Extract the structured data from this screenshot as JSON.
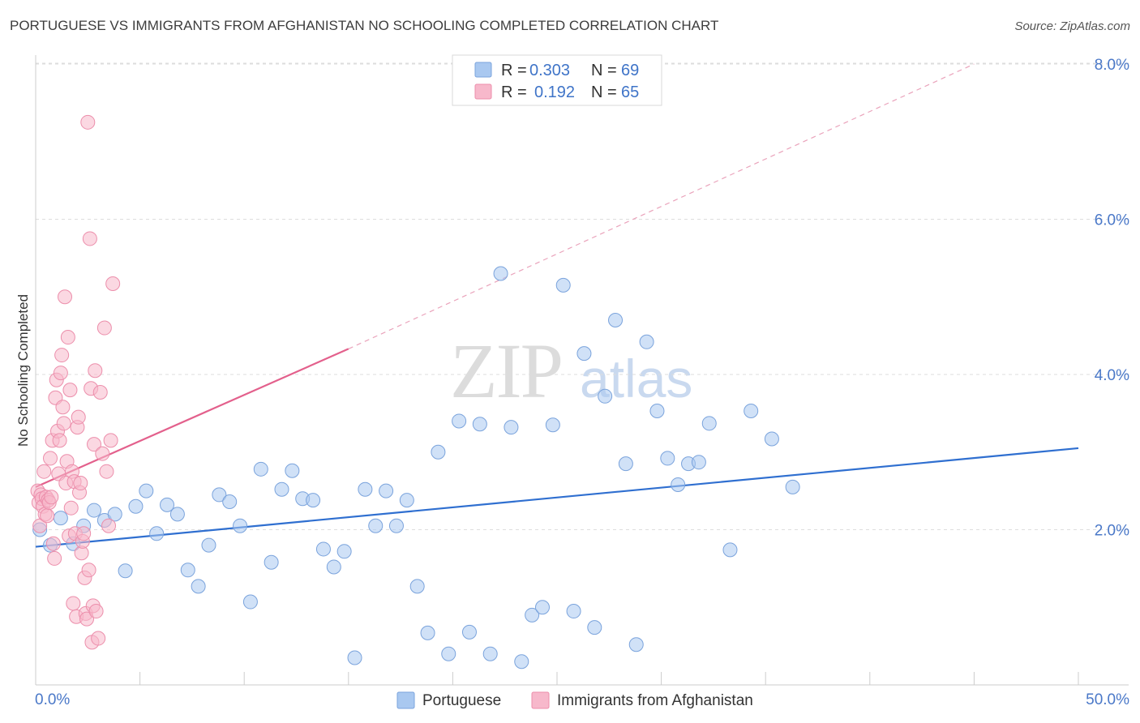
{
  "header": {
    "title": "PORTUGUESE VS IMMIGRANTS FROM AFGHANISTAN NO SCHOOLING COMPLETED CORRELATION CHART",
    "source": "Source: ZipAtlas.com"
  },
  "watermark": {
    "zip": "ZIP",
    "atlas": "atlas"
  },
  "legend": {
    "r_label": "R =",
    "n_label": "N =",
    "rows": [
      {
        "r": "0.303",
        "n": "69",
        "color": "#a9c8f0"
      },
      {
        "r": "0.192",
        "n": "65",
        "color": "#f7b8cb"
      }
    ]
  },
  "chart_data": {
    "type": "scatter",
    "title": "PORTUGUESE VS IMMIGRANTS FROM AFGHANISTAN NO SCHOOLING COMPLETED CORRELATION CHART",
    "xlabel": "",
    "ylabel": "No Schooling Completed",
    "xlim": [
      0,
      50
    ],
    "ylim": [
      0,
      8
    ],
    "y_ticks": [
      {
        "value": 2,
        "label": "2.0%"
      },
      {
        "value": 4,
        "label": "4.0%"
      },
      {
        "value": 6,
        "label": "6.0%"
      },
      {
        "value": 8,
        "label": "8.0%"
      }
    ],
    "x_tick_labels": {
      "min": "0.0%",
      "max": "50.0%"
    },
    "x_minor_ticks": [
      0,
      5,
      10,
      15,
      20,
      25,
      30,
      35,
      40,
      45,
      50
    ],
    "grid": true,
    "series": [
      {
        "name": "Portuguese",
        "color": "#a9c8f0",
        "stroke": "#7aa3dc",
        "line_color": "#2f6fd0",
        "trend": {
          "x0": 0,
          "y0": 1.78,
          "x1": 50,
          "y1": 3.05
        },
        "points": [
          [
            0.2,
            2.0
          ],
          [
            0.7,
            1.8
          ],
          [
            1.2,
            2.15
          ],
          [
            1.8,
            1.82
          ],
          [
            2.3,
            2.05
          ],
          [
            2.8,
            2.25
          ],
          [
            3.3,
            2.12
          ],
          [
            3.8,
            2.2
          ],
          [
            4.3,
            1.47
          ],
          [
            4.8,
            2.3
          ],
          [
            5.3,
            2.5
          ],
          [
            5.8,
            1.95
          ],
          [
            6.3,
            2.32
          ],
          [
            6.8,
            2.2
          ],
          [
            7.3,
            1.48
          ],
          [
            7.8,
            1.27
          ],
          [
            8.3,
            1.8
          ],
          [
            8.8,
            2.45
          ],
          [
            9.3,
            2.36
          ],
          [
            9.8,
            2.05
          ],
          [
            10.3,
            1.07
          ],
          [
            10.8,
            2.78
          ],
          [
            11.3,
            1.58
          ],
          [
            11.8,
            2.52
          ],
          [
            12.3,
            2.76
          ],
          [
            12.8,
            2.4
          ],
          [
            13.3,
            2.38
          ],
          [
            13.8,
            1.75
          ],
          [
            14.3,
            1.52
          ],
          [
            14.8,
            1.72
          ],
          [
            15.3,
            0.35
          ],
          [
            15.8,
            2.52
          ],
          [
            16.3,
            2.05
          ],
          [
            16.8,
            2.5
          ],
          [
            17.3,
            2.05
          ],
          [
            17.8,
            2.38
          ],
          [
            18.3,
            1.27
          ],
          [
            18.8,
            0.67
          ],
          [
            19.3,
            3.0
          ],
          [
            19.8,
            0.4
          ],
          [
            20.3,
            3.4
          ],
          [
            20.8,
            0.68
          ],
          [
            21.3,
            3.36
          ],
          [
            21.8,
            0.4
          ],
          [
            22.3,
            5.3
          ],
          [
            22.8,
            3.32
          ],
          [
            23.3,
            0.3
          ],
          [
            23.8,
            0.9
          ],
          [
            24.3,
            1.0
          ],
          [
            24.8,
            3.35
          ],
          [
            25.3,
            5.15
          ],
          [
            25.8,
            0.95
          ],
          [
            26.3,
            4.27
          ],
          [
            26.8,
            0.74
          ],
          [
            27.3,
            3.72
          ],
          [
            27.8,
            4.7
          ],
          [
            28.3,
            2.85
          ],
          [
            28.8,
            0.52
          ],
          [
            29.3,
            4.42
          ],
          [
            29.8,
            3.53
          ],
          [
            30.3,
            2.92
          ],
          [
            30.8,
            2.58
          ],
          [
            31.3,
            2.85
          ],
          [
            31.8,
            2.87
          ],
          [
            32.3,
            3.37
          ],
          [
            33.3,
            1.74
          ],
          [
            34.3,
            3.53
          ],
          [
            35.3,
            3.17
          ],
          [
            36.3,
            2.55
          ]
        ]
      },
      {
        "name": "Immigrants from Afghanistan",
        "color": "#f7b8cb",
        "stroke": "#ec8eab",
        "line_color": "#e3608c",
        "trend": {
          "x0": 0,
          "y0": 2.55,
          "x1": 15,
          "y1": 4.33
        },
        "trend_extension": {
          "x0": 15,
          "y0": 4.33,
          "x1": 45,
          "y1": 8.0
        },
        "points": [
          [
            0.1,
            2.5
          ],
          [
            0.15,
            2.35
          ],
          [
            0.2,
            2.05
          ],
          [
            0.25,
            2.45
          ],
          [
            0.3,
            2.4
          ],
          [
            0.35,
            2.3
          ],
          [
            0.4,
            2.75
          ],
          [
            0.45,
            2.2
          ],
          [
            0.5,
            2.42
          ],
          [
            0.55,
            2.18
          ],
          [
            0.6,
            2.38
          ],
          [
            0.65,
            2.35
          ],
          [
            0.7,
            2.92
          ],
          [
            0.75,
            2.42
          ],
          [
            0.8,
            3.15
          ],
          [
            0.85,
            1.82
          ],
          [
            0.9,
            1.63
          ],
          [
            0.95,
            3.7
          ],
          [
            1.0,
            3.93
          ],
          [
            1.05,
            3.27
          ],
          [
            1.1,
            2.72
          ],
          [
            1.15,
            3.15
          ],
          [
            1.2,
            4.02
          ],
          [
            1.25,
            4.25
          ],
          [
            1.3,
            3.58
          ],
          [
            1.35,
            3.37
          ],
          [
            1.4,
            5.0
          ],
          [
            1.45,
            2.6
          ],
          [
            1.5,
            2.88
          ],
          [
            1.55,
            4.48
          ],
          [
            1.6,
            1.92
          ],
          [
            1.65,
            3.8
          ],
          [
            1.7,
            2.28
          ],
          [
            1.75,
            2.75
          ],
          [
            1.8,
            1.05
          ],
          [
            1.85,
            2.62
          ],
          [
            1.9,
            1.95
          ],
          [
            1.95,
            0.88
          ],
          [
            2.0,
            3.32
          ],
          [
            2.05,
            3.45
          ],
          [
            2.1,
            2.48
          ],
          [
            2.15,
            2.6
          ],
          [
            2.2,
            1.7
          ],
          [
            2.25,
            1.85
          ],
          [
            2.3,
            1.95
          ],
          [
            2.35,
            1.38
          ],
          [
            2.4,
            0.92
          ],
          [
            2.45,
            0.85
          ],
          [
            2.5,
            7.25
          ],
          [
            2.55,
            1.48
          ],
          [
            2.6,
            5.75
          ],
          [
            2.65,
            3.82
          ],
          [
            2.7,
            0.55
          ],
          [
            2.75,
            1.02
          ],
          [
            2.8,
            3.1
          ],
          [
            2.85,
            4.05
          ],
          [
            2.9,
            0.95
          ],
          [
            3.0,
            0.6
          ],
          [
            3.1,
            3.77
          ],
          [
            3.2,
            2.98
          ],
          [
            3.3,
            4.6
          ],
          [
            3.4,
            2.75
          ],
          [
            3.5,
            2.05
          ],
          [
            3.6,
            3.15
          ],
          [
            3.7,
            5.17
          ]
        ]
      }
    ]
  },
  "bottom_legend": {
    "items": [
      {
        "label": "Portuguese",
        "color": "#a9c8f0"
      },
      {
        "label": "Immigrants from Afghanistan",
        "color": "#f7b8cb"
      }
    ]
  }
}
